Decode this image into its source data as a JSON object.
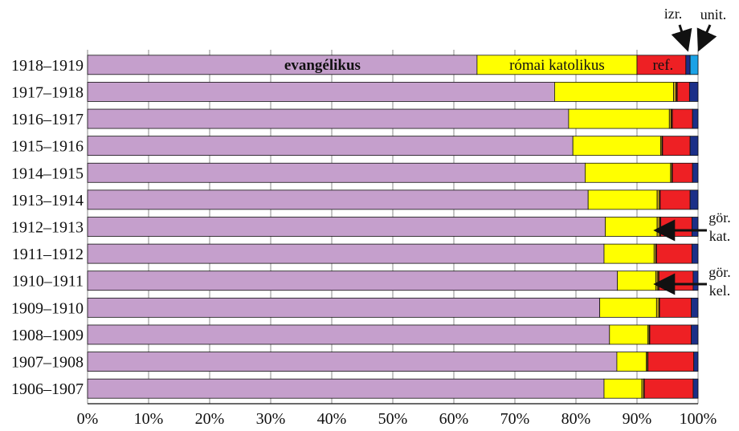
{
  "chart_data": {
    "type": "bar",
    "orientation": "horizontal",
    "stacked": true,
    "normalized": true,
    "title": "",
    "xlabel": "",
    "ylabel": "",
    "xlim": [
      0,
      100
    ],
    "grid": true,
    "legend": "none",
    "x_tick_labels": [
      "0%",
      "10%",
      "20%",
      "30%",
      "40%",
      "50%",
      "60%",
      "70%",
      "80%",
      "90%",
      "100%"
    ],
    "categories": [
      "1918–1919",
      "1917–1918",
      "1916–1917",
      "1915–1916",
      "1914–1915",
      "1913–1914",
      "1912–1913",
      "1911–1912",
      "1910–1911",
      "1909–1910",
      "1908–1909",
      "1907–1908",
      "1906–1907"
    ],
    "series": [
      {
        "name": "evangélikus",
        "color": "#c59fcc",
        "values": [
          63.8,
          76.5,
          78.8,
          79.5,
          81.5,
          82.0,
          84.8,
          84.6,
          86.8,
          83.9,
          85.5,
          86.7,
          84.6
        ]
      },
      {
        "name": "római katolikus",
        "color": "#ffff00",
        "values": [
          26.2,
          19.5,
          16.5,
          14.4,
          14.0,
          11.3,
          8.5,
          8.2,
          6.3,
          9.3,
          6.3,
          4.8,
          6.2
        ]
      },
      {
        "name": "gör. kat.",
        "color": "#c5a21a",
        "values": [
          0.0,
          0.4,
          0.3,
          0.2,
          0.2,
          0.4,
          0.4,
          0.3,
          0.3,
          0.4,
          0.2,
          0.2,
          0.3
        ]
      },
      {
        "name": "gör. kel.",
        "color": "#5a2a00",
        "values": [
          0.0,
          0.2,
          0.2,
          0.1,
          0.1,
          0.1,
          0.2,
          0.1,
          0.2,
          0.1,
          0.1,
          0.1,
          0.1
        ]
      },
      {
        "name": "ref.",
        "color": "#ee2024",
        "values": [
          8.0,
          2.0,
          3.3,
          4.5,
          3.3,
          4.9,
          5.1,
          5.8,
          5.6,
          5.2,
          6.8,
          7.5,
          8.0
        ]
      },
      {
        "name": "izr.",
        "color": "#1b2f88",
        "values": [
          0.7,
          1.4,
          0.9,
          1.3,
          0.9,
          1.3,
          1.0,
          1.0,
          0.8,
          1.1,
          1.1,
          0.7,
          0.8
        ]
      },
      {
        "name": "unit.",
        "color": "#1aa2e6",
        "values": [
          1.3,
          0.0,
          0.0,
          0.0,
          0.0,
          0.0,
          0.0,
          0.0,
          0.0,
          0.0,
          0.0,
          0.0,
          0.0
        ]
      }
    ],
    "annotations": {
      "inside_labels": [
        "evangélikus",
        "római katolikus",
        "ref."
      ],
      "top_labels": [
        "izr.",
        "unit."
      ],
      "right_labels": [
        [
          "gör.",
          "kat."
        ],
        [
          "gör.",
          "kel."
        ]
      ]
    }
  }
}
